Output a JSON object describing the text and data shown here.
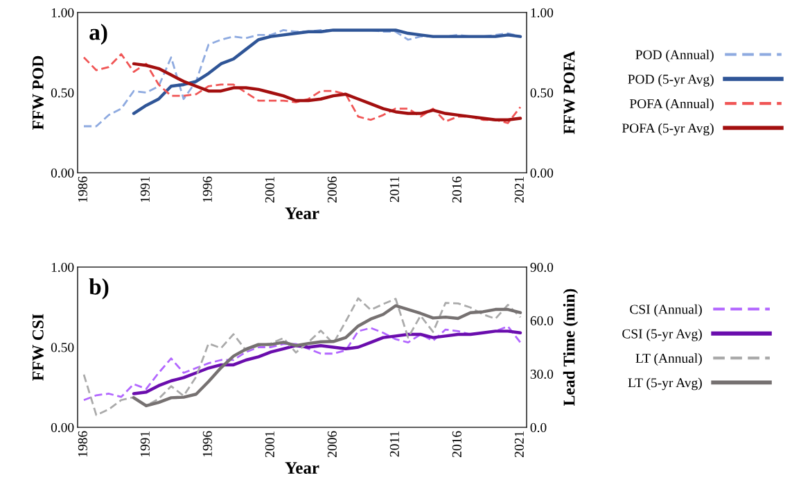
{
  "chart_data": [
    {
      "type": "line",
      "ylabel": "FFW POD",
      "y2label": "FFW POFA",
      "xlabel": "Year",
      "annotations": [
        "a)"
      ],
      "xlim": [
        1985.5,
        2021.5
      ],
      "xticks": [
        1986,
        1991,
        1996,
        2001,
        2006,
        2011,
        2016,
        2021
      ],
      "ylim": [
        0,
        1
      ],
      "yticks": [
        {
          "value": 0,
          "label": "0.00"
        },
        {
          "value": 0.5,
          "label": "0.50"
        },
        {
          "value": 1,
          "label": "1.00"
        }
      ],
      "y2lim": [
        0,
        1
      ],
      "y2ticks": [
        {
          "value": 0,
          "label": "0.00"
        },
        {
          "value": 0.5,
          "label": "0.50"
        },
        {
          "value": 1,
          "label": "1.00"
        }
      ],
      "grid": false,
      "legend": "right",
      "series": [
        {
          "name": "POD (Annual)",
          "color": "#8eaae0",
          "line_style": "dashed",
          "x": [
            1986,
            1987,
            1988,
            1989,
            1990,
            1991,
            1992,
            1993,
            1994,
            1995,
            1996,
            1997,
            1998,
            1999,
            2000,
            2001,
            2002,
            2003,
            2004,
            2005,
            2006,
            2007,
            2008,
            2009,
            2010,
            2011,
            2012,
            2013,
            2014,
            2015,
            2016,
            2017,
            2018,
            2019,
            2020,
            2021
          ],
          "values": [
            0.29,
            0.29,
            0.36,
            0.4,
            0.51,
            0.5,
            0.54,
            0.72,
            0.46,
            0.57,
            0.8,
            0.83,
            0.85,
            0.84,
            0.86,
            0.86,
            0.89,
            0.88,
            0.88,
            0.89,
            0.89,
            0.89,
            0.89,
            0.89,
            0.88,
            0.88,
            0.83,
            0.85,
            0.85,
            0.85,
            0.86,
            0.85,
            0.85,
            0.86,
            0.87,
            0.85
          ]
        },
        {
          "name": "POD (5-yr Avg)",
          "color": "#2f5597",
          "line_style": "solid",
          "x": [
            1990,
            1991,
            1992,
            1993,
            1994,
            1995,
            1996,
            1997,
            1998,
            1999,
            2000,
            2001,
            2002,
            2003,
            2004,
            2005,
            2006,
            2007,
            2008,
            2009,
            2010,
            2011,
            2012,
            2013,
            2014,
            2015,
            2016,
            2017,
            2018,
            2019,
            2020,
            2021
          ],
          "values": [
            0.37,
            0.42,
            0.46,
            0.54,
            0.55,
            0.57,
            0.62,
            0.68,
            0.71,
            0.77,
            0.83,
            0.85,
            0.86,
            0.87,
            0.88,
            0.88,
            0.89,
            0.89,
            0.89,
            0.89,
            0.89,
            0.89,
            0.87,
            0.86,
            0.85,
            0.85,
            0.85,
            0.85,
            0.85,
            0.85,
            0.86,
            0.85
          ]
        },
        {
          "name": "POFA (Annual)",
          "color": "#f05555",
          "line_style": "dashed",
          "axis": "y2",
          "x": [
            1986,
            1987,
            1988,
            1989,
            1990,
            1991,
            1992,
            1993,
            1994,
            1995,
            1996,
            1997,
            1998,
            1999,
            2000,
            2001,
            2002,
            2003,
            2004,
            2005,
            2006,
            2007,
            2008,
            2009,
            2010,
            2011,
            2012,
            2013,
            2014,
            2015,
            2016,
            2017,
            2018,
            2019,
            2020,
            2021
          ],
          "values": [
            0.72,
            0.64,
            0.66,
            0.74,
            0.63,
            0.68,
            0.55,
            0.48,
            0.48,
            0.49,
            0.54,
            0.55,
            0.55,
            0.5,
            0.45,
            0.45,
            0.45,
            0.44,
            0.46,
            0.51,
            0.51,
            0.49,
            0.35,
            0.33,
            0.36,
            0.4,
            0.4,
            0.35,
            0.4,
            0.32,
            0.35,
            0.35,
            0.33,
            0.33,
            0.31,
            0.41
          ]
        },
        {
          "name": "POFA (5-yr Avg)",
          "color": "#a30f0f",
          "line_style": "solid",
          "axis": "y2",
          "x": [
            1990,
            1991,
            1992,
            1993,
            1994,
            1995,
            1996,
            1997,
            1998,
            1999,
            2000,
            2001,
            2002,
            2003,
            2004,
            2005,
            2006,
            2007,
            2008,
            2009,
            2010,
            2011,
            2012,
            2013,
            2014,
            2015,
            2016,
            2017,
            2018,
            2019,
            2020,
            2021
          ],
          "values": [
            0.68,
            0.67,
            0.65,
            0.61,
            0.57,
            0.54,
            0.51,
            0.51,
            0.53,
            0.53,
            0.52,
            0.5,
            0.48,
            0.45,
            0.45,
            0.46,
            0.48,
            0.49,
            0.46,
            0.43,
            0.4,
            0.38,
            0.37,
            0.37,
            0.39,
            0.37,
            0.36,
            0.35,
            0.34,
            0.33,
            0.33,
            0.34
          ]
        }
      ]
    },
    {
      "type": "line",
      "ylabel": "FFW CSI",
      "y2label": "Lead Time (min)",
      "xlabel": "Year",
      "annotations": [
        "b)"
      ],
      "xlim": [
        1985.5,
        2021.5
      ],
      "xticks": [
        1986,
        1991,
        1996,
        2001,
        2006,
        2011,
        2016,
        2021
      ],
      "ylim": [
        0,
        1
      ],
      "yticks": [
        {
          "value": 0,
          "label": "0.00"
        },
        {
          "value": 0.5,
          "label": "0.50"
        },
        {
          "value": 1,
          "label": "1.00"
        }
      ],
      "y2lim": [
        0,
        90
      ],
      "y2ticks": [
        {
          "value": 0,
          "label": "0.0"
        },
        {
          "value": 30,
          "label": "30.0"
        },
        {
          "value": 60,
          "label": "60.0"
        },
        {
          "value": 90,
          "label": "90.0"
        }
      ],
      "grid": false,
      "legend": "right",
      "series": [
        {
          "name": "CSI (Annual)",
          "color": "#b266ff",
          "line_style": "dashed",
          "x": [
            1986,
            1987,
            1988,
            1989,
            1990,
            1991,
            1992,
            1993,
            1994,
            1995,
            1996,
            1997,
            1998,
            1999,
            2000,
            2001,
            2002,
            2003,
            2004,
            2005,
            2006,
            2007,
            2008,
            2009,
            2010,
            2011,
            2012,
            2013,
            2014,
            2015,
            2016,
            2017,
            2018,
            2019,
            2020,
            2021
          ],
          "values": [
            0.17,
            0.2,
            0.21,
            0.19,
            0.27,
            0.24,
            0.34,
            0.43,
            0.34,
            0.37,
            0.4,
            0.42,
            0.42,
            0.47,
            0.5,
            0.5,
            0.52,
            0.52,
            0.49,
            0.46,
            0.46,
            0.48,
            0.6,
            0.62,
            0.59,
            0.55,
            0.53,
            0.58,
            0.54,
            0.61,
            0.6,
            0.58,
            0.59,
            0.6,
            0.63,
            0.53
          ]
        },
        {
          "name": "CSI (5-yr Avg)",
          "color": "#6a0dad",
          "line_style": "solid",
          "x": [
            1990,
            1991,
            1992,
            1993,
            1994,
            1995,
            1996,
            1997,
            1998,
            1999,
            2000,
            2001,
            2002,
            2003,
            2004,
            2005,
            2006,
            2007,
            2008,
            2009,
            2010,
            2011,
            2012,
            2013,
            2014,
            2015,
            2016,
            2017,
            2018,
            2019,
            2020,
            2021
          ],
          "values": [
            0.21,
            0.22,
            0.26,
            0.29,
            0.31,
            0.34,
            0.37,
            0.39,
            0.39,
            0.42,
            0.44,
            0.47,
            0.49,
            0.51,
            0.5,
            0.51,
            0.5,
            0.49,
            0.5,
            0.53,
            0.56,
            0.57,
            0.58,
            0.58,
            0.56,
            0.57,
            0.58,
            0.58,
            0.59,
            0.6,
            0.6,
            0.59
          ]
        },
        {
          "name": "LT (Annual)",
          "color": "#aaaaaa",
          "line_style": "dashed",
          "axis": "y2",
          "x": [
            1986,
            1987,
            1988,
            1989,
            1990,
            1991,
            1992,
            1993,
            1994,
            1995,
            1996,
            1997,
            1998,
            1999,
            2000,
            2001,
            2002,
            2003,
            2004,
            2005,
            2006,
            2007,
            2008,
            2009,
            2010,
            2011,
            2012,
            2013,
            2014,
            2015,
            2016,
            2017,
            2018,
            2019,
            2020,
            2021
          ],
          "values": [
            29.6,
            6.9,
            10.1,
            15.3,
            16.9,
            12.1,
            16.0,
            23.1,
            17.7,
            28.3,
            47.1,
            44.5,
            52.3,
            43.2,
            45.9,
            47.1,
            50.1,
            42.0,
            47.8,
            54.3,
            47.1,
            59.5,
            72.5,
            66.0,
            69.2,
            72.2,
            50.4,
            62.7,
            53.6,
            69.9,
            69.6,
            67.3,
            63.4,
            61.0,
            68.8,
            61.8
          ]
        },
        {
          "name": "LT (5-yr Avg)",
          "color": "#767171",
          "line_style": "solid",
          "axis": "y2",
          "x": [
            1990,
            1991,
            1992,
            1993,
            1994,
            1995,
            1996,
            1997,
            1998,
            1999,
            2000,
            2001,
            2002,
            2003,
            2004,
            2005,
            2006,
            2007,
            2008,
            2009,
            2010,
            2011,
            2012,
            2013,
            2014,
            2015,
            2016,
            2017,
            2018,
            2019,
            2020,
            2021
          ],
          "values": [
            16.6,
            12.1,
            14.0,
            16.6,
            16.9,
            18.6,
            25.7,
            33.5,
            40.0,
            43.9,
            46.5,
            46.5,
            47.8,
            45.9,
            47.1,
            48.0,
            48.2,
            50.4,
            56.9,
            60.8,
            63.4,
            68.3,
            66.2,
            64.0,
            61.4,
            61.9,
            61.2,
            64.4,
            64.9,
            66.2,
            66.2,
            64.4
          ]
        }
      ]
    }
  ]
}
